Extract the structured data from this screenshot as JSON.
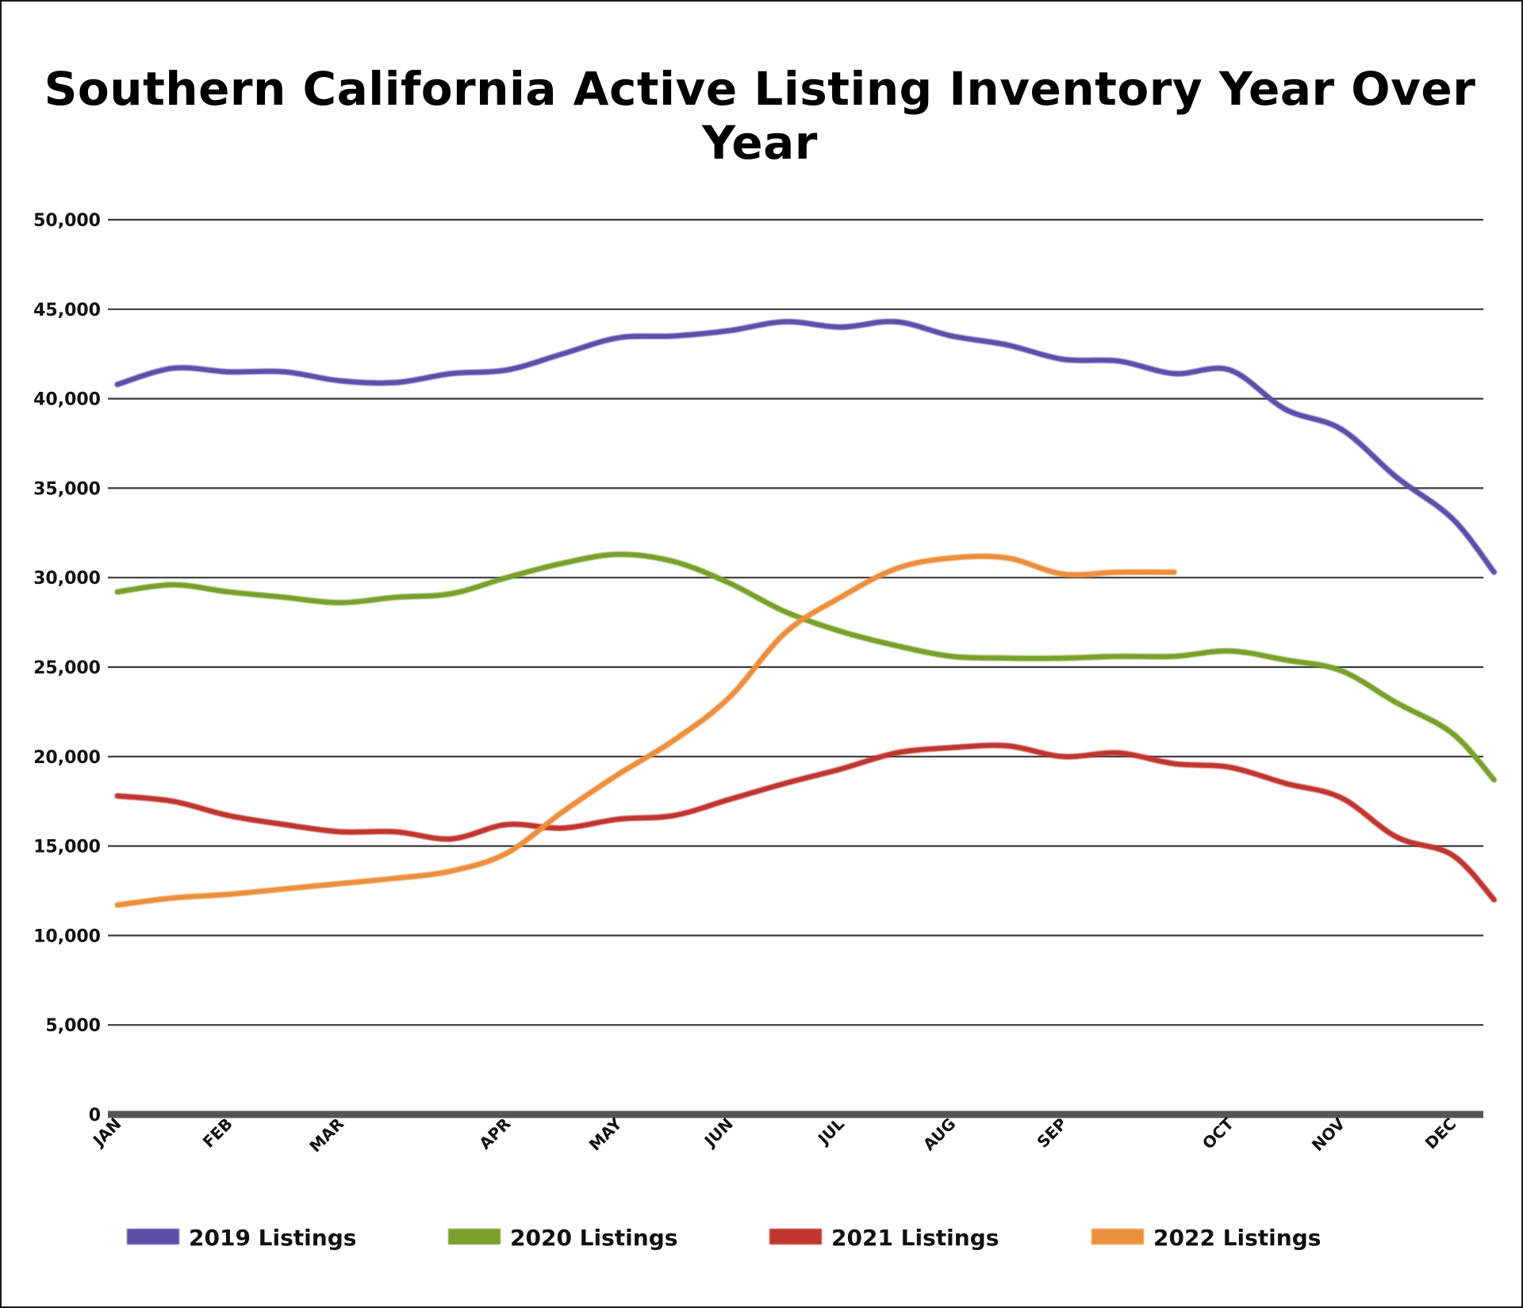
{
  "chart_data": {
    "type": "line",
    "title": "Southern California Active Listing Inventory Year Over Year",
    "xlabel": "",
    "ylabel": "",
    "ylim": [
      0,
      50000
    ],
    "yticks": [
      0,
      5000,
      10000,
      15000,
      20000,
      25000,
      30000,
      35000,
      40000,
      45000,
      50000
    ],
    "ytick_labels": [
      "0",
      "5,000",
      "10,000",
      "15,000",
      "20,000",
      "25,000",
      "30,000",
      "35,000",
      "40,000",
      "45,000",
      "50,000"
    ],
    "xlim": [
      0,
      49
    ],
    "months": [
      {
        "label": "JAN",
        "x": 0
      },
      {
        "label": "FEB",
        "x": 4
      },
      {
        "label": "MAR",
        "x": 8
      },
      {
        "label": "APR",
        "x": 14
      },
      {
        "label": "MAY",
        "x": 18
      },
      {
        "label": "JUN",
        "x": 22
      },
      {
        "label": "JUL",
        "x": 26
      },
      {
        "label": "AUG",
        "x": 30
      },
      {
        "label": "SEP",
        "x": 34
      },
      {
        "label": "OCT",
        "x": 40
      },
      {
        "label": "NOV",
        "x": 44
      },
      {
        "label": "DEC",
        "x": 48
      }
    ],
    "grid": true,
    "legend_position": "bottom",
    "series": [
      {
        "name": "2019 Listings",
        "color": "#5b4faa",
        "x": [
          0,
          2,
          4,
          6,
          8,
          10,
          12,
          14,
          16,
          18,
          20,
          22,
          24,
          26,
          28,
          30,
          32,
          34,
          36,
          38,
          40,
          42,
          44,
          46,
          48,
          49.5
        ],
        "values": [
          40800,
          41700,
          41500,
          41500,
          41000,
          40900,
          41400,
          41600,
          42500,
          43400,
          43500,
          43800,
          44300,
          44000,
          44300,
          43500,
          43000,
          42200,
          42100,
          41400,
          41600,
          39400,
          38300,
          35600,
          33300,
          30300
        ]
      },
      {
        "name": "2020 Listings",
        "color": "#78a02a",
        "x": [
          0,
          2,
          4,
          6,
          8,
          10,
          12,
          14,
          16,
          18,
          20,
          22,
          24,
          26,
          28,
          30,
          32,
          34,
          36,
          38,
          40,
          42,
          44,
          46,
          48,
          49.5
        ],
        "values": [
          29200,
          29600,
          29200,
          28900,
          28600,
          28900,
          29100,
          30000,
          30800,
          31300,
          30900,
          29700,
          28100,
          27000,
          26200,
          25600,
          25500,
          25500,
          25600,
          25600,
          25900,
          25400,
          24800,
          23000,
          21300,
          18700
        ]
      },
      {
        "name": "2021 Listings",
        "color": "#c0342f",
        "x": [
          0,
          2,
          4,
          6,
          8,
          10,
          12,
          14,
          16,
          18,
          20,
          22,
          24,
          26,
          28,
          30,
          32,
          34,
          36,
          38,
          40,
          42,
          44,
          46,
          48,
          49.5
        ],
        "values": [
          17800,
          17500,
          16700,
          16200,
          15800,
          15800,
          15400,
          16200,
          16000,
          16500,
          16700,
          17600,
          18500,
          19300,
          20200,
          20500,
          20600,
          20000,
          20200,
          19600,
          19400,
          18500,
          17700,
          15500,
          14500,
          12000
        ]
      },
      {
        "name": "2022 Listings",
        "color": "#ec8f3e",
        "x": [
          0,
          2,
          4,
          6,
          8,
          10,
          12,
          14,
          16,
          18,
          20,
          22,
          24,
          26,
          28,
          30,
          32,
          34,
          36,
          38
        ],
        "values": [
          11700,
          12100,
          12300,
          12600,
          12900,
          13200,
          13600,
          14600,
          16900,
          19000,
          20900,
          23300,
          26900,
          28900,
          30500,
          31100,
          31100,
          30200,
          30300,
          30300
        ]
      }
    ]
  }
}
